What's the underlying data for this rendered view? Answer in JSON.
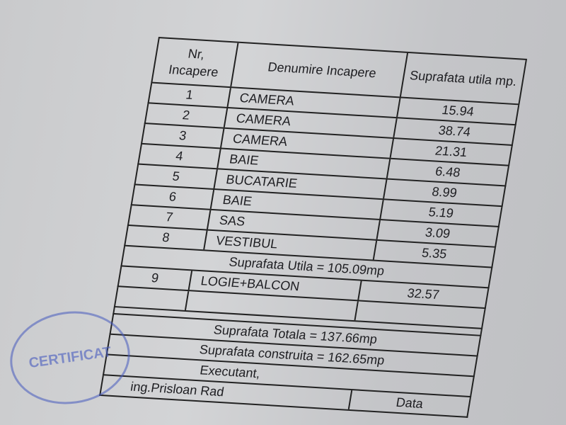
{
  "headers": {
    "nr": "Nr, Incapere",
    "denumire": "Denumire Incapere",
    "suprafata": "Suprafata utila mp."
  },
  "rows": [
    {
      "nr": "1",
      "name": "CAMERA",
      "area": "15.94"
    },
    {
      "nr": "2",
      "name": "CAMERA",
      "area": "38.74"
    },
    {
      "nr": "3",
      "name": "CAMERA",
      "area": "21.31"
    },
    {
      "nr": "4",
      "name": "BAIE",
      "area": "6.48"
    },
    {
      "nr": "5",
      "name": "BUCATARIE",
      "area": "8.99"
    },
    {
      "nr": "6",
      "name": "BAIE",
      "area": "5.19"
    },
    {
      "nr": "7",
      "name": "SAS",
      "area": "3.09"
    },
    {
      "nr": "8",
      "name": "VESTIBUL",
      "area": "5.35"
    }
  ],
  "suprafata_utila": "Suprafata Utila = 105.09mp",
  "row9": {
    "nr": "9",
    "name": "LOGIE+BALCON",
    "area": "32.57"
  },
  "suprafata_totala": "Suprafata Totala = 137.66mp",
  "suprafata_construita": "Suprafata construita = 162.65mp",
  "executant": "Executant,",
  "data_label": "Data",
  "engineer": "ing.Prisloan Rad",
  "stamp": {
    "text": "CERTIFICAT",
    "color": "#4a5fbe"
  }
}
